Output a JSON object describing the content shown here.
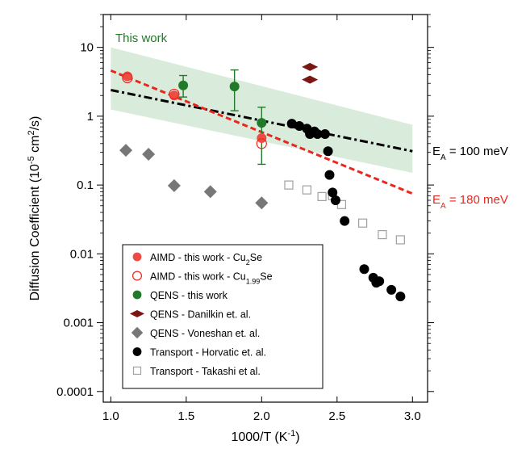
{
  "chart_data": {
    "type": "scatter",
    "xlabel": "1000/T (K",
    "xlabel_sup": "-1",
    "xlabel_tail": ")",
    "ylabel": "Diffusion Coefficient (10",
    "ylabel_sup1": "-5",
    "ylabel_mid": " cm",
    "ylabel_sup2": "2",
    "ylabel_tail": "/s)",
    "xlim": [
      0.95,
      3.1
    ],
    "ylim": [
      7e-05,
      30
    ],
    "yscale": "log",
    "grid": false,
    "legend_position": "bottom-left",
    "x_ticks": [
      "1.0",
      "1.5",
      "2.0",
      "2.5",
      "3.0"
    ],
    "y_ticks": [
      "10",
      "1",
      "0.1",
      "0.01",
      "0.001",
      "0.0001"
    ],
    "band": {
      "color": "#d9ecdc",
      "upper": [
        [
          1.0,
          10.0
        ],
        [
          3.0,
          0.75
        ]
      ],
      "lower": [
        [
          1.0,
          1.25
        ],
        [
          3.0,
          0.15
        ]
      ]
    },
    "fit_lines": [
      {
        "label": "E",
        "label_sub": "A",
        "label_tail": " = 100 meV",
        "color": "#000000",
        "dash": "dashdot",
        "points": [
          [
            1.0,
            2.4
          ],
          [
            3.0,
            0.31
          ]
        ]
      },
      {
        "label": "E",
        "label_sub": "A",
        "label_tail": " = 180 meV",
        "color": "#e8281e",
        "dash": "dash",
        "points": [
          [
            1.0,
            4.6
          ],
          [
            3.0,
            0.075
          ]
        ]
      }
    ],
    "annotation": {
      "text": "This work",
      "color": "#217a29"
    },
    "series": [
      {
        "name": "AIMD - this work - Cu",
        "name_sub": "2",
        "name_tail": "Se",
        "marker": "circle-filled",
        "color": "#f04b42",
        "x": [
          1.11,
          1.42,
          2.0
        ],
        "y": [
          3.8,
          2.0,
          0.48
        ]
      },
      {
        "name": "AIMD - this work - Cu",
        "name_sub": "1.99",
        "name_tail": "Se",
        "marker": "circle-open",
        "color": "#e8281e",
        "x": [
          1.11,
          1.42,
          2.0
        ],
        "y": [
          3.6,
          2.1,
          0.4
        ]
      },
      {
        "name": "QENS - this work",
        "marker": "circle-filled",
        "color": "#217a29",
        "x": [
          1.48,
          1.82,
          2.0
        ],
        "y": [
          2.8,
          2.7,
          0.8
        ],
        "err_low": [
          1.9,
          1.2,
          0.2
        ],
        "err_high": [
          3.9,
          4.7,
          1.35
        ]
      },
      {
        "name": "QENS - Danilkin et. al.",
        "marker": "diamond-wide",
        "color": "#7a1712",
        "x": [
          2.32,
          2.32
        ],
        "y": [
          5.2,
          3.4
        ]
      },
      {
        "name": "QENS - Voneshan et. al.",
        "marker": "diamond",
        "color": "#777777",
        "x": [
          1.1,
          1.25,
          1.42,
          1.66,
          2.0
        ],
        "y": [
          0.32,
          0.28,
          0.098,
          0.08,
          0.055
        ]
      },
      {
        "name": "Transport - Horvatic et. al.",
        "marker": "circle-filled",
        "color": "#000000",
        "x": [
          2.2,
          2.25,
          2.3,
          2.35,
          2.42,
          2.32,
          2.37,
          2.44,
          2.45,
          2.47,
          2.49,
          2.55,
          2.68,
          2.74,
          2.76,
          2.78,
          2.86,
          2.92
        ],
        "y": [
          0.78,
          0.72,
          0.66,
          0.6,
          0.55,
          0.55,
          0.55,
          0.31,
          0.14,
          0.078,
          0.06,
          0.03,
          0.006,
          0.0045,
          0.0038,
          0.004,
          0.003,
          0.0024
        ]
      },
      {
        "name": "Transport - Takashi et al.",
        "marker": "square-open",
        "color": "#a0a0a0",
        "x": [
          2.18,
          2.3,
          2.4,
          2.47,
          2.53,
          2.67,
          2.8,
          2.92
        ],
        "y": [
          0.1,
          0.085,
          0.068,
          0.07,
          0.052,
          0.028,
          0.019,
          0.016
        ]
      }
    ]
  }
}
